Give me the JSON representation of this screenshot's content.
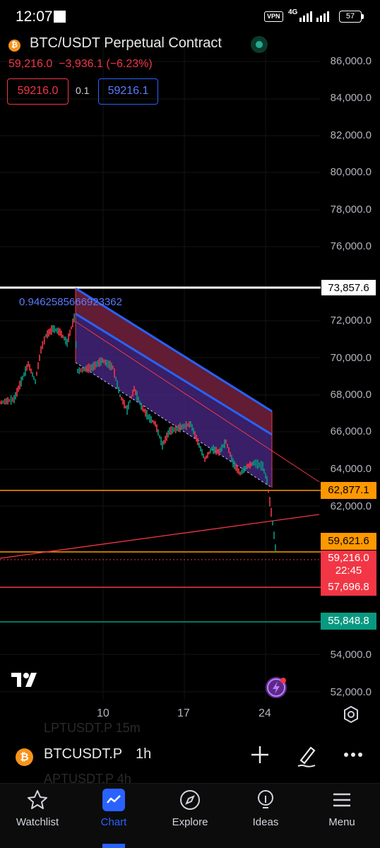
{
  "status_bar": {
    "time": "12:07",
    "vpn": "VPN",
    "network": "4G",
    "battery": "57"
  },
  "header": {
    "title": "BTC/USDT Perpetual Contract",
    "logo_glyph": "₿",
    "last_price": "59,216.0",
    "change": "−3,936.1",
    "change_pct": "(−6.23%)",
    "bid": "59216.0",
    "spread": "0.1",
    "ask": "59216.1"
  },
  "chart": {
    "ratio_label": "0.9462585666923362",
    "y_axis_ticks": [
      "86,000.0",
      "84,000.0",
      "82,000.0",
      "80,000.0",
      "78,000.0",
      "76,000.0",
      "72,000.0",
      "70,000.0",
      "68,000.0",
      "66,000.0",
      "64,000.0",
      "62,000.0",
      "54,000.0",
      "52,000.0"
    ],
    "x_axis_ticks": [
      "10",
      "17",
      "24"
    ],
    "price_tags": {
      "high_line": "73,857.6",
      "level_1": "62,877.1",
      "level_2": "59,621.6",
      "current_price": "59,216.0",
      "countdown": "22:45",
      "level_3": "57,696.8",
      "level_4": "55,848.8"
    },
    "colors": {
      "up": "#089981",
      "down": "#f23645",
      "accent": "#2962ff",
      "level_orange": "#ff9800",
      "channel_fill": "#4b2a8a",
      "zone_fill": "#5a1a22"
    }
  },
  "ghost_rows": [
    "LPTUSDT.P  15m",
    "APTUSDT.P  4h"
  ],
  "symbol_bar": {
    "logo_glyph": "₿",
    "symbol": "BTCUSDT.P",
    "interval": "1h",
    "add_icon": "plus-icon",
    "draw_icon": "brush-icon",
    "more_icon": "more-icon"
  },
  "nav": {
    "items": [
      {
        "label": "Watchlist",
        "icon": "star-icon"
      },
      {
        "label": "Chart",
        "icon": "chart-icon"
      },
      {
        "label": "Explore",
        "icon": "compass-icon"
      },
      {
        "label": "Ideas",
        "icon": "bulb-icon"
      },
      {
        "label": "Menu",
        "icon": "menu-icon"
      }
    ]
  }
}
